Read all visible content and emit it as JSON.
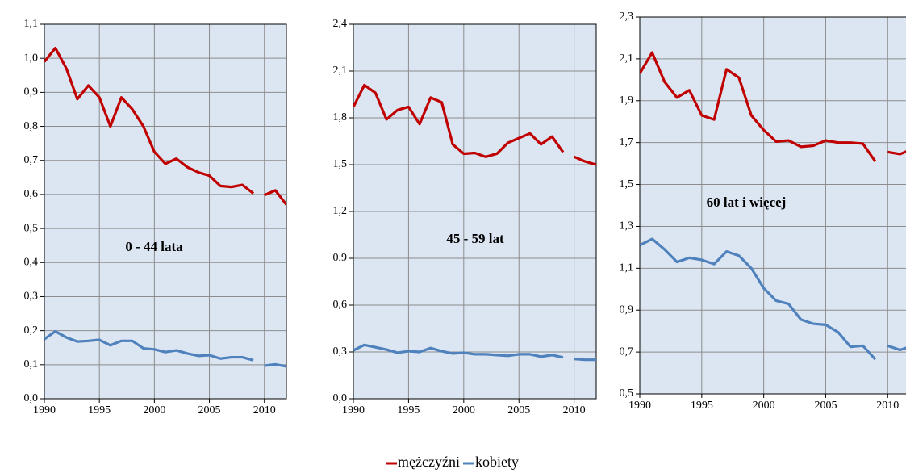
{
  "chart_data": [
    {
      "type": "line",
      "annotation": "0 - 44 lata",
      "x": [
        1990,
        1991,
        1992,
        1993,
        1994,
        1995,
        1996,
        1997,
        1998,
        1999,
        2000,
        2001,
        2002,
        2003,
        2004,
        2005,
        2006,
        2007,
        2008,
        2009,
        2010,
        2011,
        2012
      ],
      "break_after": 2009,
      "xlim": [
        1990,
        2012
      ],
      "xticks": [
        1990,
        1995,
        2000,
        2005,
        2010
      ],
      "ylim": [
        0,
        1.1
      ],
      "yticks": [
        {
          "value": 0,
          "label": "0,0"
        },
        {
          "value": 0.1,
          "label": "0,1"
        },
        {
          "value": 0.2,
          "label": "0,2"
        },
        {
          "value": 0.3,
          "label": "0,3"
        },
        {
          "value": 0.4,
          "label": "0,4"
        },
        {
          "value": 0.5,
          "label": "0,5"
        },
        {
          "value": 0.6,
          "label": "0,6"
        },
        {
          "value": 0.7,
          "label": "0,7"
        },
        {
          "value": 0.8,
          "label": "0,8"
        },
        {
          "value": 0.9,
          "label": "0,9"
        },
        {
          "value": 1.0,
          "label": "1,0"
        },
        {
          "value": 1.1,
          "label": "1,1"
        }
      ],
      "grid": true,
      "series": [
        {
          "name": "mężczyźni",
          "color": "#c00000",
          "values": [
            0.99,
            1.03,
            0.97,
            0.88,
            0.92,
            0.885,
            0.8,
            0.885,
            0.85,
            0.8,
            0.725,
            0.69,
            0.705,
            0.68,
            0.665,
            0.655,
            0.625,
            0.622,
            0.628,
            0.603,
            0.598,
            0.612,
            0.57
          ]
        },
        {
          "name": "kobiety",
          "color": "#4f81bd",
          "values": [
            0.175,
            0.198,
            0.18,
            0.168,
            0.17,
            0.173,
            0.157,
            0.17,
            0.17,
            0.148,
            0.145,
            0.137,
            0.142,
            0.133,
            0.126,
            0.128,
            0.118,
            0.122,
            0.122,
            0.113,
            0.097,
            0.101,
            0.095
          ]
        }
      ],
      "legend": "bottom"
    },
    {
      "type": "line",
      "annotation": "45 - 59 lat",
      "x": [
        1990,
        1991,
        1992,
        1993,
        1994,
        1995,
        1996,
        1997,
        1998,
        1999,
        2000,
        2001,
        2002,
        2003,
        2004,
        2005,
        2006,
        2007,
        2008,
        2009,
        2010,
        2011,
        2012
      ],
      "break_after": 2009,
      "xlim": [
        1990,
        2012
      ],
      "xticks": [
        1990,
        1995,
        2000,
        2005,
        2010
      ],
      "ylim": [
        0,
        2.4
      ],
      "yticks": [
        {
          "value": 0,
          "label": "0,0"
        },
        {
          "value": 0.3,
          "label": "0,3"
        },
        {
          "value": 0.6,
          "label": "0,6"
        },
        {
          "value": 0.9,
          "label": "0,9"
        },
        {
          "value": 1.2,
          "label": "1,2"
        },
        {
          "value": 1.5,
          "label": "1,5"
        },
        {
          "value": 1.8,
          "label": "1,8"
        },
        {
          "value": 2.1,
          "label": "2,1"
        },
        {
          "value": 2.4,
          "label": "2,4"
        }
      ],
      "grid": true,
      "series": [
        {
          "name": "mężczyźni",
          "color": "#c00000",
          "values": [
            1.87,
            2.01,
            1.96,
            1.79,
            1.85,
            1.87,
            1.76,
            1.93,
            1.9,
            1.63,
            1.57,
            1.575,
            1.55,
            1.57,
            1.64,
            1.67,
            1.7,
            1.63,
            1.68,
            1.58,
            1.55,
            1.52,
            1.5
          ]
        },
        {
          "name": "kobiety",
          "color": "#4f81bd",
          "values": [
            0.31,
            0.345,
            0.33,
            0.315,
            0.295,
            0.305,
            0.3,
            0.325,
            0.305,
            0.29,
            0.295,
            0.285,
            0.285,
            0.28,
            0.275,
            0.285,
            0.285,
            0.27,
            0.28,
            0.265,
            0.255,
            0.25,
            0.25
          ]
        }
      ]
    },
    {
      "type": "line",
      "annotation": "60 lat i więcej",
      "x": [
        1990,
        1991,
        1992,
        1993,
        1994,
        1995,
        1996,
        1997,
        1998,
        1999,
        2000,
        2001,
        2002,
        2003,
        2004,
        2005,
        2006,
        2007,
        2008,
        2009,
        2010,
        2011,
        2012
      ],
      "break_after": 2009,
      "xlim": [
        1990,
        2012
      ],
      "xticks": [
        1990,
        1995,
        2000,
        2005,
        2010
      ],
      "ylim": [
        0.5,
        2.3
      ],
      "yticks": [
        {
          "value": 0.5,
          "label": "0,5"
        },
        {
          "value": 0.7,
          "label": "0,7"
        },
        {
          "value": 0.9,
          "label": "0,9"
        },
        {
          "value": 1.1,
          "label": "1,1"
        },
        {
          "value": 1.3,
          "label": "1,3"
        },
        {
          "value": 1.5,
          "label": "1,5"
        },
        {
          "value": 1.7,
          "label": "1,7"
        },
        {
          "value": 1.9,
          "label": "1,9"
        },
        {
          "value": 2.1,
          "label": "2,1"
        },
        {
          "value": 2.3,
          "label": "2,3"
        }
      ],
      "grid": true,
      "series": [
        {
          "name": "mężczyźni",
          "color": "#c00000",
          "values": [
            2.03,
            2.13,
            1.99,
            1.915,
            1.95,
            1.83,
            1.81,
            2.05,
            2.01,
            1.83,
            1.76,
            1.705,
            1.71,
            1.68,
            1.685,
            1.71,
            1.7,
            1.7,
            1.695,
            1.61,
            1.655,
            1.645,
            1.67
          ]
        },
        {
          "name": "kobiety",
          "color": "#4f81bd",
          "values": [
            1.21,
            1.24,
            1.19,
            1.13,
            1.15,
            1.14,
            1.12,
            1.18,
            1.16,
            1.1,
            1.005,
            0.945,
            0.93,
            0.855,
            0.835,
            0.83,
            0.795,
            0.725,
            0.73,
            0.665,
            0.73,
            0.71,
            0.73
          ]
        }
      ]
    }
  ]
}
